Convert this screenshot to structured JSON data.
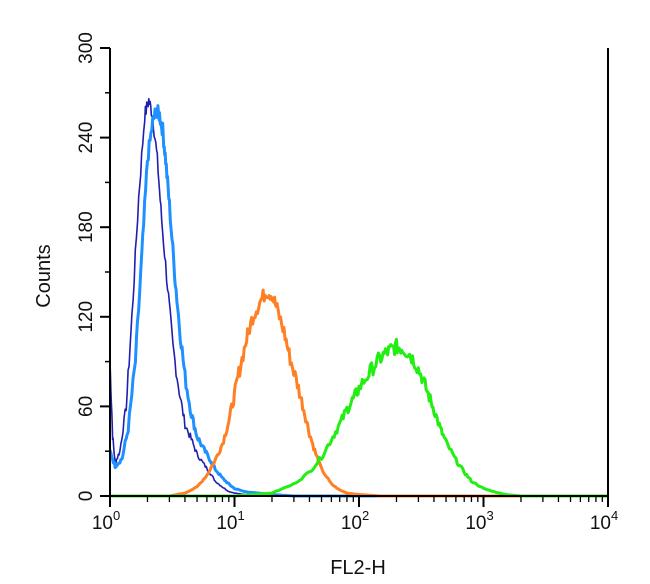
{
  "chart_data": {
    "type": "line",
    "title": "",
    "xlabel": "FL2-H",
    "ylabel": "Counts",
    "x_scale": "log",
    "xlim": [
      1,
      10000
    ],
    "ylim": [
      0,
      300
    ],
    "x_ticks": [
      {
        "base": "10",
        "exp": "0",
        "value": 1
      },
      {
        "base": "10",
        "exp": "1",
        "value": 10
      },
      {
        "base": "10",
        "exp": "2",
        "value": 100
      },
      {
        "base": "10",
        "exp": "3",
        "value": 1000
      },
      {
        "base": "10",
        "exp": "4",
        "value": 10000
      }
    ],
    "y_ticks": [
      "0",
      "60",
      "120",
      "180",
      "240",
      "300"
    ],
    "grid": false,
    "legend": "none",
    "series": [
      {
        "color": "#1f1fb0",
        "x": [
          1,
          1.05,
          1.1,
          1.2,
          1.35,
          1.5,
          1.7,
          1.9,
          2.05,
          2.2,
          2.4,
          2.6,
          2.9,
          3.2,
          3.6,
          4.0,
          4.5,
          5.0,
          5.6,
          6.3,
          7.0,
          8.0,
          9.0,
          10,
          12,
          15,
          20,
          30,
          50,
          100,
          1000,
          10000
        ],
        "values": [
          90,
          40,
          22,
          30,
          60,
          120,
          200,
          255,
          265,
          255,
          225,
          185,
          140,
          100,
          70,
          48,
          38,
          28,
          22,
          16,
          10,
          6,
          3,
          2,
          1,
          0,
          0,
          0,
          0,
          0,
          0,
          0
        ]
      },
      {
        "color": "#1e90ff",
        "x": [
          1,
          1.1,
          1.25,
          1.4,
          1.6,
          1.8,
          2.0,
          2.2,
          2.35,
          2.5,
          2.65,
          2.8,
          3.0,
          3.3,
          3.6,
          4.0,
          4.5,
          5.0,
          5.6,
          6.3,
          7.0,
          8.0,
          9.0,
          10,
          12,
          15,
          20,
          30,
          50,
          100,
          1000,
          10000
        ],
        "values": [
          30,
          20,
          25,
          45,
          90,
          160,
          225,
          250,
          258,
          255,
          245,
          225,
          195,
          150,
          115,
          80,
          55,
          40,
          32,
          25,
          18,
          12,
          8,
          5,
          3,
          2,
          1,
          0,
          0,
          0,
          0,
          0
        ]
      },
      {
        "color": "#ff7f24",
        "x": [
          1,
          3,
          4,
          5,
          6,
          7,
          8,
          9,
          10,
          11,
          12.5,
          14,
          16,
          18,
          20,
          22,
          25,
          28,
          32,
          36,
          40,
          45,
          50,
          60,
          70,
          80,
          100,
          150,
          1000,
          10000
        ],
        "values": [
          0,
          0,
          2,
          6,
          14,
          24,
          35,
          50,
          68,
          85,
          105,
          120,
          130,
          137,
          135,
          125,
          110,
          92,
          75,
          58,
          42,
          28,
          18,
          8,
          4,
          2,
          1,
          0,
          0,
          0
        ]
      },
      {
        "color": "#22ee11",
        "x": [
          1,
          3,
          10,
          20,
          30,
          40,
          50,
          60,
          70,
          80,
          90,
          100,
          120,
          140,
          160,
          180,
          200,
          220,
          250,
          280,
          320,
          360,
          400,
          450,
          500,
          600,
          700,
          800,
          1000,
          1200,
          1500,
          2000,
          3000,
          5000,
          10000
        ],
        "values": [
          0,
          0,
          0,
          2,
          8,
          16,
          26,
          38,
          48,
          58,
          65,
          72,
          82,
          90,
          95,
          98,
          100,
          99,
          96,
          90,
          80,
          68,
          58,
          45,
          36,
          24,
          16,
          10,
          5,
          3,
          1,
          0,
          0,
          0,
          0
        ]
      }
    ]
  }
}
